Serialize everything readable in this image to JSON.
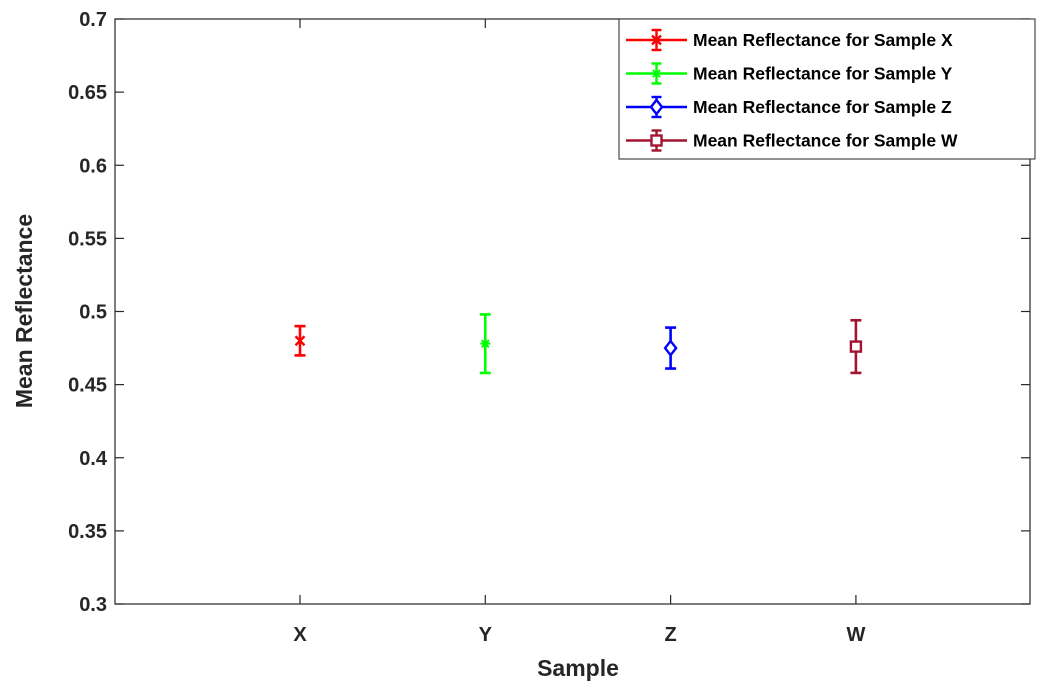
{
  "chart_data": {
    "type": "scatter",
    "title": "",
    "xlabel": "Sample",
    "ylabel": "Mean Reflectance",
    "categories": [
      "X",
      "Y",
      "Z",
      "W"
    ],
    "ylim": [
      0.3,
      0.7
    ],
    "yticks": [
      0.3,
      0.35,
      0.4,
      0.45,
      0.5,
      0.55,
      0.6,
      0.65,
      0.7
    ],
    "ytick_labels": [
      "0.3",
      "0.35",
      "0.4",
      "0.45",
      "0.5",
      "0.55",
      "0.6",
      "0.65",
      "0.7"
    ],
    "grid": false,
    "legend_position": "top-right",
    "series": [
      {
        "name": "Mean Reflectance for Sample X",
        "category": "X",
        "value": 0.48,
        "lower": 0.47,
        "upper": 0.49,
        "color": "#ff0000",
        "marker": "x-cross"
      },
      {
        "name": "Mean Reflectance for Sample Y",
        "category": "Y",
        "value": 0.478,
        "lower": 0.458,
        "upper": 0.498,
        "color": "#00ff00",
        "marker": "asterisk"
      },
      {
        "name": "Mean Reflectance for Sample Z",
        "category": "Z",
        "value": 0.475,
        "lower": 0.461,
        "upper": 0.489,
        "color": "#0000ff",
        "marker": "diamond"
      },
      {
        "name": "Mean Reflectance for Sample W",
        "category": "W",
        "value": 0.476,
        "lower": 0.458,
        "upper": 0.494,
        "color": "#a2142f",
        "marker": "square"
      }
    ]
  }
}
